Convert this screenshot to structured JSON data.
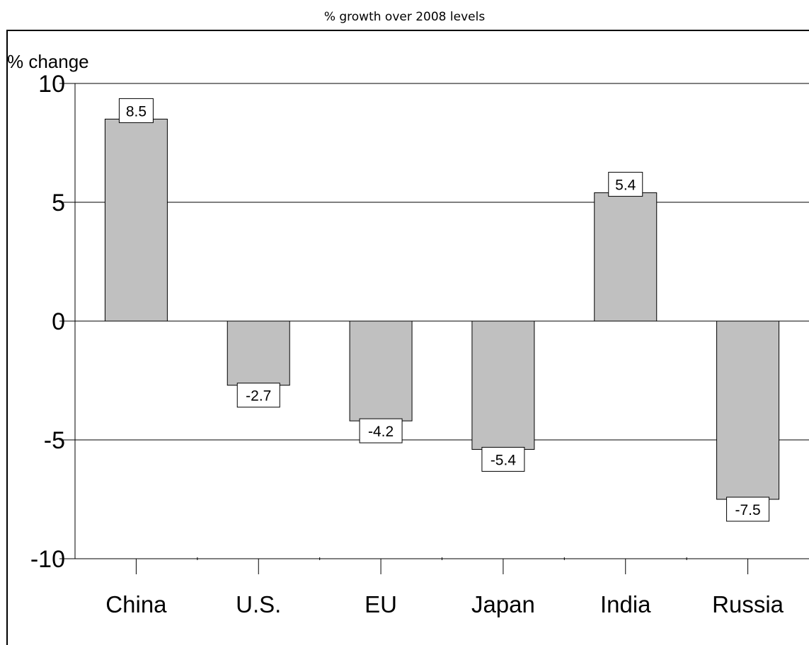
{
  "page_title": "% growth over 2008 levels",
  "chart_data": {
    "type": "bar",
    "title": "% growth over 2008 levels",
    "ylabel": "% change",
    "xlabel": "",
    "categories": [
      "China",
      "U.S.",
      "EU",
      "Japan",
      "India",
      "Russia"
    ],
    "values": [
      8.5,
      -2.7,
      -4.2,
      -5.4,
      5.4,
      -7.5
    ],
    "data_labels": [
      "8.5",
      "-2.7",
      "-4.2",
      "-5.4",
      "5.4",
      "-7.5"
    ],
    "ylim": [
      -10,
      10
    ],
    "yticks": [
      10,
      5,
      0,
      -5,
      -10
    ],
    "ytick_labels": [
      "10",
      "5",
      "0",
      "-5",
      "-10"
    ],
    "grid": true,
    "bar_color": "#c0c0c0",
    "bar_edge_color": "#000000",
    "legend": "none"
  }
}
